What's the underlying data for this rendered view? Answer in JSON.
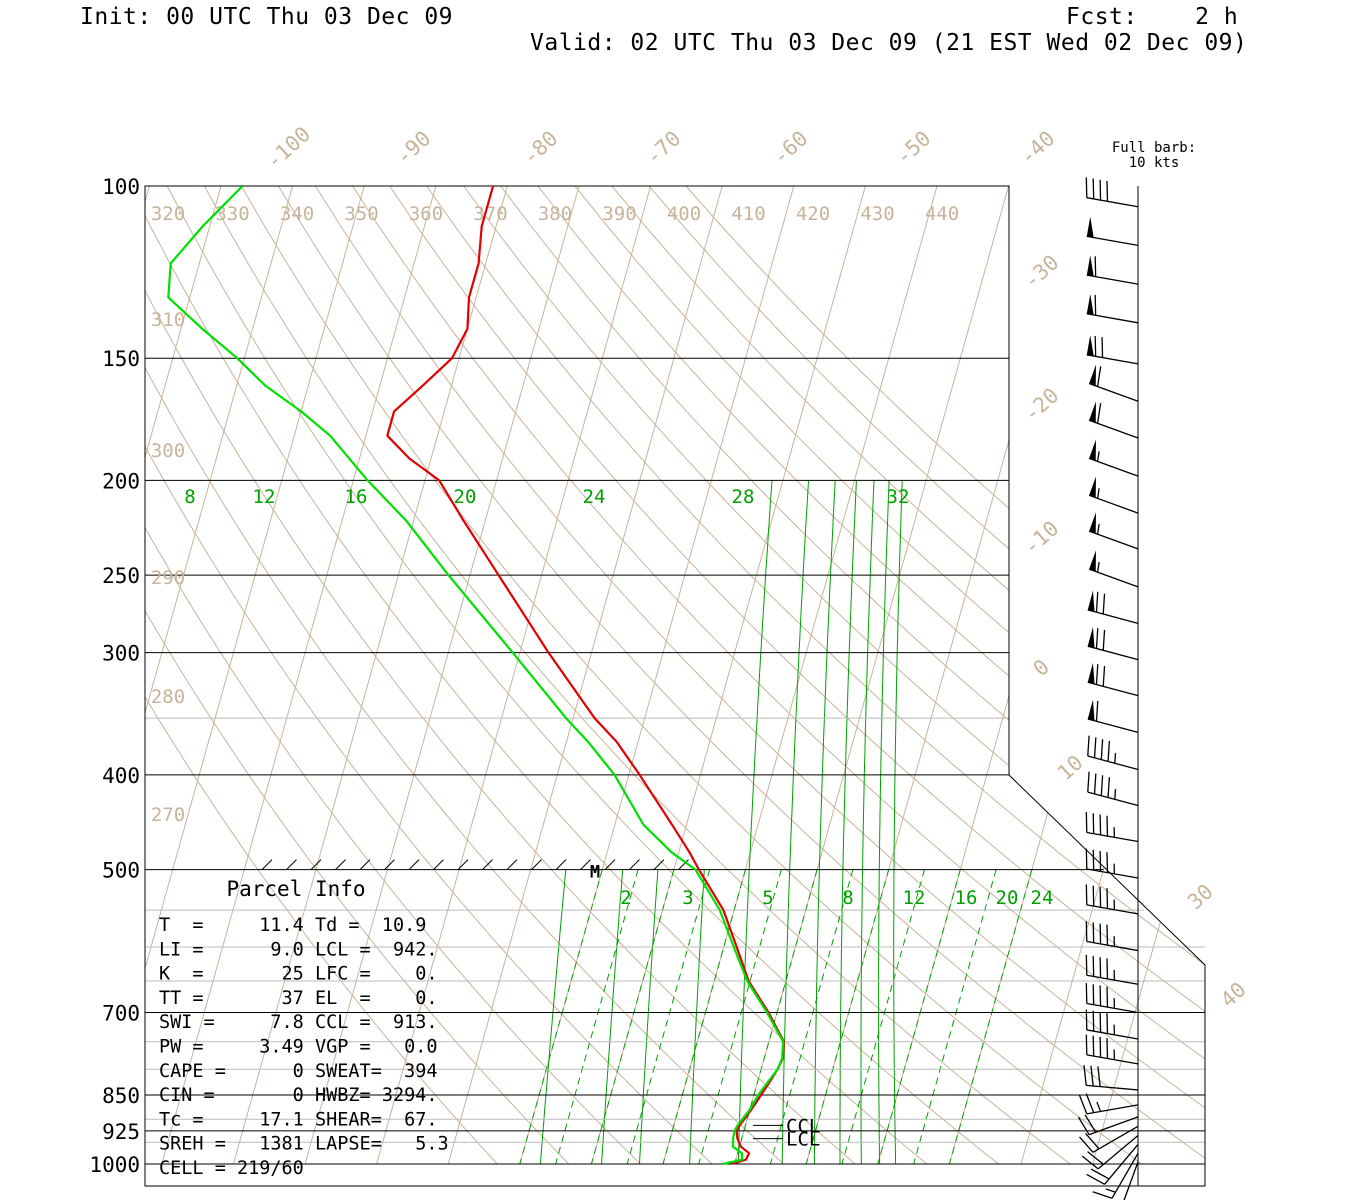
{
  "header": {
    "init": "Init: 00 UTC Thu 03 Dec 09",
    "fcst": "Fcst:    2 h",
    "valid": "Valid: 02 UTC Thu 03 Dec 09 (21 EST Wed 02 Dec 09)"
  },
  "colors": {
    "temperature": "#e00000",
    "dewpoint": "#00e000",
    "background_lines": "#c8b49a",
    "mixing_ratio": "#00a000",
    "isobars": "#000000",
    "wind_barbs": "#000000"
  },
  "chart_data": {
    "type": "line",
    "diagram": "skew-T log-P",
    "pressure_levels": [
      100,
      150,
      200,
      250,
      300,
      400,
      500,
      700,
      850,
      925,
      1000
    ],
    "pressure_labels": [
      "100",
      "150",
      "200",
      "250",
      "300",
      "400",
      "500",
      "700",
      "850",
      "925",
      "1000"
    ],
    "pressure_range": [
      100,
      1000
    ],
    "isotherm_labels": [
      "-100",
      "-90",
      "-80",
      "-70",
      "-60",
      "-50",
      "-40",
      "-30",
      "-20",
      "-10",
      "0",
      "10",
      "30",
      "40"
    ],
    "theta_labels_top": [
      "320",
      "330",
      "340",
      "350",
      "360",
      "370",
      "380",
      "390",
      "400",
      "410",
      "420",
      "430",
      "440"
    ],
    "theta_labels_left": [
      "310",
      "300",
      "290",
      "280",
      "270"
    ],
    "mixing_ratio_labels_upper": [
      "8",
      "12",
      "16",
      "20",
      "24",
      "28",
      "32"
    ],
    "mixing_ratio_labels_lower": [
      "2",
      "3",
      "5",
      "8",
      "12",
      "16",
      "20",
      "24"
    ],
    "series": [
      {
        "name": "Temperature",
        "color": "#e00000",
        "points": [
          [
            1000,
            9.5
          ],
          [
            990,
            11.4
          ],
          [
            975,
            11.6
          ],
          [
            960,
            10.2
          ],
          [
            942,
            9.4
          ],
          [
            925,
            9.0
          ],
          [
            913,
            9.2
          ],
          [
            880,
            10.2
          ],
          [
            850,
            11.0
          ],
          [
            820,
            11.8
          ],
          [
            800,
            12.3
          ],
          [
            780,
            12.6
          ],
          [
            750,
            12.1
          ],
          [
            700,
            8.8
          ],
          [
            650,
            4.8
          ],
          [
            600,
            1.8
          ],
          [
            550,
            -1.5
          ],
          [
            500,
            -6.5
          ],
          [
            480,
            -8.5
          ],
          [
            450,
            -12.0
          ],
          [
            400,
            -18.5
          ],
          [
            370,
            -23.0
          ],
          [
            350,
            -27.0
          ],
          [
            300,
            -36.0
          ],
          [
            250,
            -46.0
          ],
          [
            220,
            -53.0
          ],
          [
            200,
            -58.0
          ],
          [
            190,
            -63.0
          ],
          [
            180,
            -67.0
          ],
          [
            170,
            -67.0
          ],
          [
            160,
            -64.0
          ],
          [
            150,
            -61.0
          ],
          [
            140,
            -60.0
          ],
          [
            130,
            -61.0
          ],
          [
            120,
            -61.0
          ],
          [
            110,
            -62.0
          ],
          [
            100,
            -62.0
          ]
        ]
      },
      {
        "name": "Dewpoint",
        "color": "#00e000",
        "points": [
          [
            1000,
            8.3
          ],
          [
            990,
            10.9
          ],
          [
            975,
            10.6
          ],
          [
            960,
            9.1
          ],
          [
            942,
            8.8
          ],
          [
            925,
            8.7
          ],
          [
            913,
            8.9
          ],
          [
            880,
            10.0
          ],
          [
            850,
            10.6
          ],
          [
            820,
            11.6
          ],
          [
            800,
            12.3
          ],
          [
            780,
            12.5
          ],
          [
            750,
            12.0
          ],
          [
            700,
            8.6
          ],
          [
            650,
            4.6
          ],
          [
            600,
            1.4
          ],
          [
            550,
            -2.0
          ],
          [
            500,
            -7.0
          ],
          [
            480,
            -11.0
          ],
          [
            450,
            -16.0
          ],
          [
            400,
            -22.0
          ],
          [
            370,
            -27.0
          ],
          [
            350,
            -31.0
          ],
          [
            300,
            -41.0
          ],
          [
            250,
            -53.0
          ],
          [
            220,
            -61.0
          ],
          [
            200,
            -68.0
          ],
          [
            180,
            -75.0
          ],
          [
            170,
            -80.0
          ],
          [
            160,
            -86.0
          ],
          [
            150,
            -91.0
          ],
          [
            140,
            -97.0
          ],
          [
            130,
            -103.0
          ],
          [
            120,
            -104.0
          ],
          [
            110,
            -101.0
          ],
          [
            100,
            -97.0
          ]
        ]
      }
    ],
    "markers": [
      {
        "label": "CCL",
        "pressure": 913
      },
      {
        "label": "LCL",
        "pressure": 942
      },
      {
        "label": "M",
        "pressure": 500
      }
    ],
    "wind_legend": [
      "Full barb:",
      "10 kts"
    ],
    "wind_profile": [
      {
        "pressure": 105,
        "dir": 280,
        "kt": 40
      },
      {
        "pressure": 115,
        "dir": 280,
        "kt": 50
      },
      {
        "pressure": 126,
        "dir": 280,
        "kt": 60
      },
      {
        "pressure": 138,
        "dir": 280,
        "kt": 60
      },
      {
        "pressure": 152,
        "dir": 280,
        "kt": 70
      },
      {
        "pressure": 166,
        "dir": 290,
        "kt": 60
      },
      {
        "pressure": 181,
        "dir": 290,
        "kt": 60
      },
      {
        "pressure": 198,
        "dir": 290,
        "kt": 55
      },
      {
        "pressure": 216,
        "dir": 290,
        "kt": 55
      },
      {
        "pressure": 235,
        "dir": 290,
        "kt": 55
      },
      {
        "pressure": 257,
        "dir": 290,
        "kt": 55
      },
      {
        "pressure": 280,
        "dir": 285,
        "kt": 70
      },
      {
        "pressure": 305,
        "dir": 285,
        "kt": 70
      },
      {
        "pressure": 332,
        "dir": 285,
        "kt": 70
      },
      {
        "pressure": 362,
        "dir": 285,
        "kt": 60
      },
      {
        "pressure": 395,
        "dir": 285,
        "kt": 45
      },
      {
        "pressure": 430,
        "dir": 285,
        "kt": 45
      },
      {
        "pressure": 468,
        "dir": 280,
        "kt": 45
      },
      {
        "pressure": 510,
        "dir": 280,
        "kt": 45
      },
      {
        "pressure": 555,
        "dir": 280,
        "kt": 45
      },
      {
        "pressure": 605,
        "dir": 280,
        "kt": 45
      },
      {
        "pressure": 655,
        "dir": 280,
        "kt": 45
      },
      {
        "pressure": 700,
        "dir": 280,
        "kt": 45
      },
      {
        "pressure": 745,
        "dir": 280,
        "kt": 45
      },
      {
        "pressure": 790,
        "dir": 280,
        "kt": 45
      },
      {
        "pressure": 840,
        "dir": 275,
        "kt": 30
      },
      {
        "pressure": 870,
        "dir": 260,
        "kt": 25
      },
      {
        "pressure": 895,
        "dir": 250,
        "kt": 20
      },
      {
        "pressure": 915,
        "dir": 240,
        "kt": 20
      },
      {
        "pressure": 935,
        "dir": 230,
        "kt": 20
      },
      {
        "pressure": 955,
        "dir": 220,
        "kt": 20
      },
      {
        "pressure": 975,
        "dir": 210,
        "kt": 15
      },
      {
        "pressure": 995,
        "dir": 200,
        "kt": 15
      }
    ]
  },
  "parcel_info": {
    "title": "Parcel Info",
    "rows": [
      {
        "left": "T  =     11.4",
        "right": "Td =  10.9"
      },
      {
        "left": "LI =      9.0",
        "right": "LCL =  942."
      },
      {
        "left": "K  =       25",
        "right": "LFC =    0."
      },
      {
        "left": "TT =       37",
        "right": "EL  =    0."
      },
      {
        "left": "SWI =     7.8",
        "right": "CCL =  913."
      },
      {
        "left": "PW =     3.49",
        "right": "VGP =   0.0"
      },
      {
        "left": "CAPE =      0",
        "right": "SWEAT=  394"
      },
      {
        "left": "CIN =       0",
        "right": "HWBZ= 3294."
      },
      {
        "left": "Tc =     17.1",
        "right": "SHEAR=  67."
      },
      {
        "left": "SREH =   1381",
        "right": "LAPSE=   5.3"
      },
      {
        "left": "CELL = 219/60",
        "right": ""
      }
    ]
  }
}
